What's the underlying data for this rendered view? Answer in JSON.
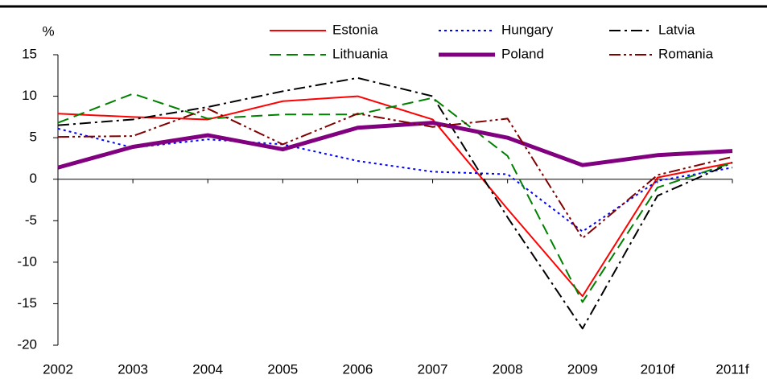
{
  "chart_data": {
    "type": "line",
    "y_label": "%",
    "categories": [
      "2002",
      "2003",
      "2004",
      "2005",
      "2006",
      "2007",
      "2008",
      "2009",
      "2010f",
      "2011f"
    ],
    "series": [
      {
        "name": "Estonia",
        "color": "#ff0000",
        "linestyle": "solid",
        "linewidth": 2,
        "values": [
          7.9,
          7.5,
          7.2,
          9.4,
          10.0,
          7.2,
          -3.6,
          -14.1,
          0.2,
          2.0
        ]
      },
      {
        "name": "Hungary",
        "color": "#0000ff",
        "linestyle": "dotted",
        "linewidth": 2,
        "values": [
          6.1,
          3.8,
          4.8,
          4.2,
          2.2,
          0.9,
          0.6,
          -6.3,
          -0.2,
          1.4
        ]
      },
      {
        "name": "Latvia",
        "color": "#000000",
        "linestyle": "dashdot",
        "linewidth": 2,
        "values": [
          6.5,
          7.2,
          8.7,
          10.6,
          12.2,
          10.0,
          -4.6,
          -18.0,
          -2.0,
          2.0
        ]
      },
      {
        "name": "Lithuania",
        "color": "#008000",
        "linestyle": "dashed",
        "linewidth": 2,
        "values": [
          6.8,
          10.3,
          7.3,
          7.8,
          7.8,
          9.8,
          2.8,
          -14.8,
          -1.0,
          2.0
        ]
      },
      {
        "name": "Poland",
        "color": "#800080",
        "linestyle": "solid",
        "linewidth": 5,
        "values": [
          1.4,
          3.9,
          5.3,
          3.6,
          6.2,
          6.8,
          5.0,
          1.7,
          2.9,
          3.4
        ]
      },
      {
        "name": "Romania",
        "color": "#800000",
        "linestyle": "dashdotdot",
        "linewidth": 2,
        "values": [
          5.1,
          5.2,
          8.5,
          4.2,
          7.9,
          6.3,
          7.3,
          -7.1,
          0.5,
          2.7
        ]
      }
    ],
    "ylim": [
      -20,
      15
    ],
    "yticks": [
      -20,
      -15,
      -10,
      -5,
      0,
      5,
      10,
      15
    ],
    "grid": false
  }
}
